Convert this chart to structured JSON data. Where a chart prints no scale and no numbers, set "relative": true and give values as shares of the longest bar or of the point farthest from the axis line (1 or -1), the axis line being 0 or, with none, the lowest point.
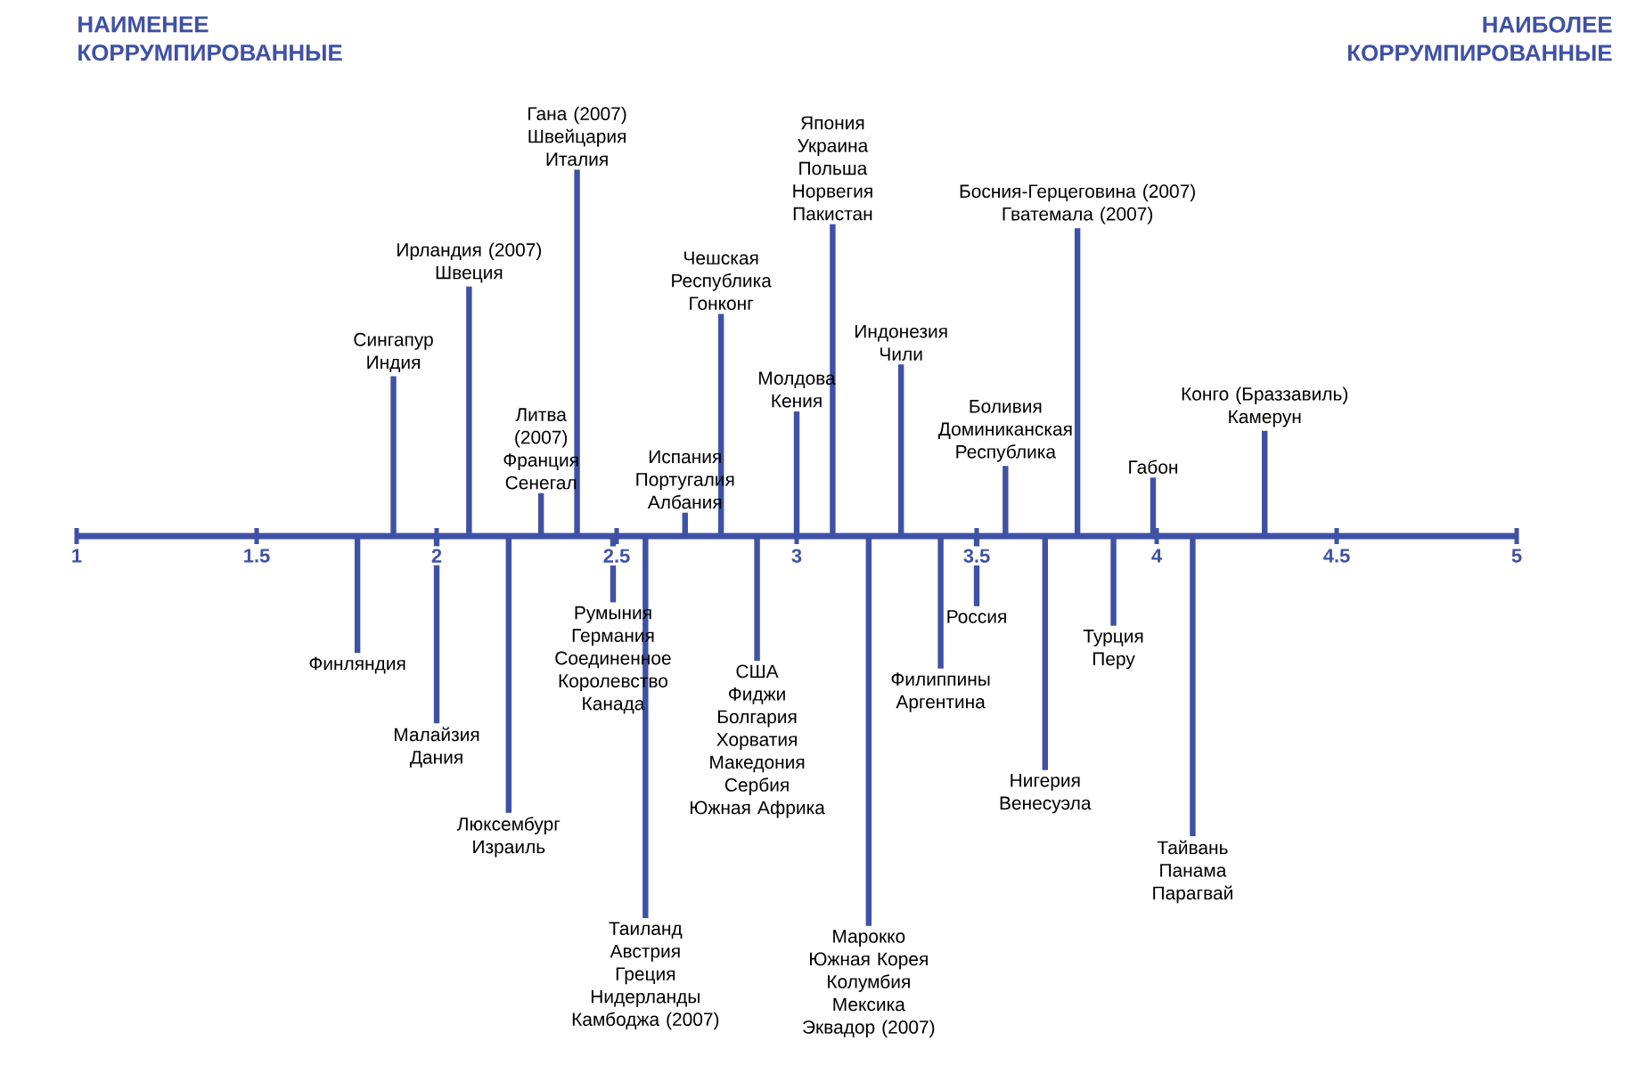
{
  "chart_data": {
    "type": "bar",
    "relative": true,
    "color": "#3f51a5",
    "x": [
      1.78,
      1.88,
      2.0,
      2.09,
      2.2,
      2.29,
      2.39,
      2.49,
      2.58,
      2.69,
      2.79,
      2.89,
      3.0,
      3.1,
      3.2,
      3.29,
      3.4,
      3.5,
      3.58,
      3.69,
      3.78,
      3.88,
      3.99,
      4.1,
      4.3
    ],
    "values": [
      -0.3,
      0.41,
      -0.48,
      0.64,
      -0.71,
      0.11,
      0.94,
      -0.17,
      -0.98,
      0.06,
      0.57,
      -0.32,
      0.32,
      0.8,
      -1,
      0.44,
      -0.34,
      -0.18,
      0.18,
      -0.6,
      0.79,
      -0.23,
      0.15,
      -0.77,
      0.27
    ],
    "xlim": [
      1,
      5
    ],
    "xticks": [
      1,
      1.5,
      2,
      2.5,
      3,
      3.5,
      4,
      4.5,
      5
    ],
    "annotations": [
      "НАИМЕНЕЕ\nКОРРУМПИРОВАННЫЕ",
      "НАИБОЛЕЕ\nКОРРУМПИРОВАННЫЕ",
      {
        "text": "Финляндия",
        "x": 1.78,
        "y": -0.3
      },
      {
        "text": "Сингапур\nИндия",
        "x": 1.88,
        "y": 0.41
      },
      {
        "text": "Малайзия\nДания",
        "x": 2.0,
        "y": -0.48
      },
      {
        "text": "Ирландия (2007)\nШвеция",
        "x": 2.09,
        "y": 0.64
      },
      {
        "text": "Люксембург\nИзраиль",
        "x": 2.2,
        "y": -0.71
      },
      {
        "text": "Литва\n(2007)\nФранция\nСенегал",
        "x": 2.29,
        "y": 0.11
      },
      {
        "text": "Гана (2007)\nШвейцария\nИталия",
        "x": 2.39,
        "y": 0.94
      },
      {
        "text": "Румыния\nГермания\nСоединенное\nКоролевство\nКанада",
        "x": 2.49,
        "y": -0.17
      },
      {
        "text": "Таиланд\nАвстрия\nГреция\nНидерланды\nКамбоджа (2007)",
        "x": 2.58,
        "y": -0.98
      },
      {
        "text": "Испания\nПортугалия\nАлбания",
        "x": 2.69,
        "y": 0.06
      },
      {
        "text": "Чешская\nРеспублика\nГонконг",
        "x": 2.79,
        "y": 0.57
      },
      {
        "text": "США\nФиджи\nБолгария\nХорватия\nМакедония\nСербия\nЮжная Африка",
        "x": 2.89,
        "y": -0.32
      },
      {
        "text": "Молдова\nКения",
        "x": 3.0,
        "y": 0.32
      },
      {
        "text": "Япония\nУкраина\nПольша\nНорвегия\nПакистан",
        "x": 3.1,
        "y": 0.8
      },
      {
        "text": "Марокко\nЮжная Корея\nКолумбия\nМексика\nЭквадор (2007)",
        "x": 3.2,
        "y": -1
      },
      {
        "text": "Индонезия\nЧили",
        "x": 3.29,
        "y": 0.44
      },
      {
        "text": "Филиппины\nАргентина",
        "x": 3.4,
        "y": -0.34
      },
      {
        "text": "Россия",
        "x": 3.5,
        "y": -0.18
      },
      {
        "text": "Боливия\nДоминиканская\nРеспублика",
        "x": 3.58,
        "y": 0.18
      },
      {
        "text": "Нигерия\nВенесуэла",
        "x": 3.69,
        "y": -0.6
      },
      {
        "text": "Босния-Герцеговина (2007)\nГватемала (2007)",
        "x": 3.78,
        "y": 0.79
      },
      {
        "text": "Турция\nПеру",
        "x": 3.88,
        "y": -0.23
      },
      {
        "text": "Габон",
        "x": 3.99,
        "y": 0.15
      },
      {
        "text": "Тайвань\nПанама\nПарагвай",
        "x": 4.1,
        "y": -0.77
      },
      {
        "text": "Конго (Браззавиль)\nКамерун",
        "x": 4.3,
        "y": 0.27
      }
    ]
  }
}
